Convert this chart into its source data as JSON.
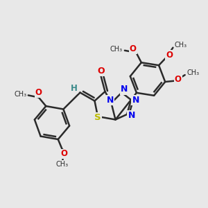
{
  "bg_color": "#e8e8e8",
  "bond_color": "#2a2a2a",
  "bond_width": 1.8,
  "N_color": "#0000ee",
  "O_color": "#dd0000",
  "S_color": "#bbbb00",
  "H_color": "#3a8a8a",
  "figsize": [
    3.0,
    3.0
  ],
  "dpi": 100,
  "xlim": [
    0,
    10
  ],
  "ylim": [
    0,
    10
  ]
}
